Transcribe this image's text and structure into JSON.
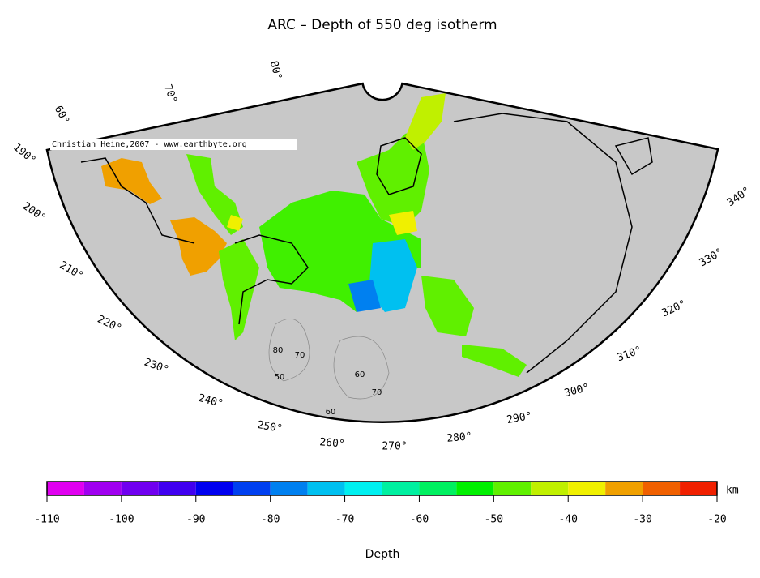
{
  "title": "ARC – Depth of 550 deg isotherm",
  "map": {
    "credit": "Christian Heine,2007 - www.earthbyte.org",
    "longitude_labels": [
      "190°",
      "200°",
      "210°",
      "220°",
      "230°",
      "240°",
      "250°",
      "260°",
      "270°",
      "280°",
      "290°",
      "300°",
      "310°",
      "320°",
      "330°",
      "340°"
    ],
    "latitude_labels": [
      "60°",
      "70°",
      "80°"
    ],
    "contour_labels": [
      "80",
      "70",
      "50",
      "60",
      "70",
      "60"
    ]
  },
  "colorbar": {
    "label": "Depth",
    "unit": "km",
    "lim": [
      -110,
      -20
    ],
    "ticks": [
      -110,
      -100,
      -90,
      -80,
      -70,
      -60,
      -50,
      -40,
      -30,
      -20
    ],
    "bins": [
      -110,
      -105,
      -100,
      -95,
      -90,
      -85,
      -80,
      -75,
      -70,
      -65,
      -60,
      -55,
      -50,
      -45,
      -40,
      -35,
      -30,
      -25,
      -20
    ],
    "colors": [
      "#e000f0",
      "#a000f0",
      "#7000f0",
      "#4000f0",
      "#0000f0",
      "#0040f0",
      "#0080f0",
      "#00c0f0",
      "#00f0f0",
      "#00f0a0",
      "#00f060",
      "#00f000",
      "#60f000",
      "#c0f000",
      "#f0f000",
      "#f0a000",
      "#f06000",
      "#f02000"
    ]
  }
}
